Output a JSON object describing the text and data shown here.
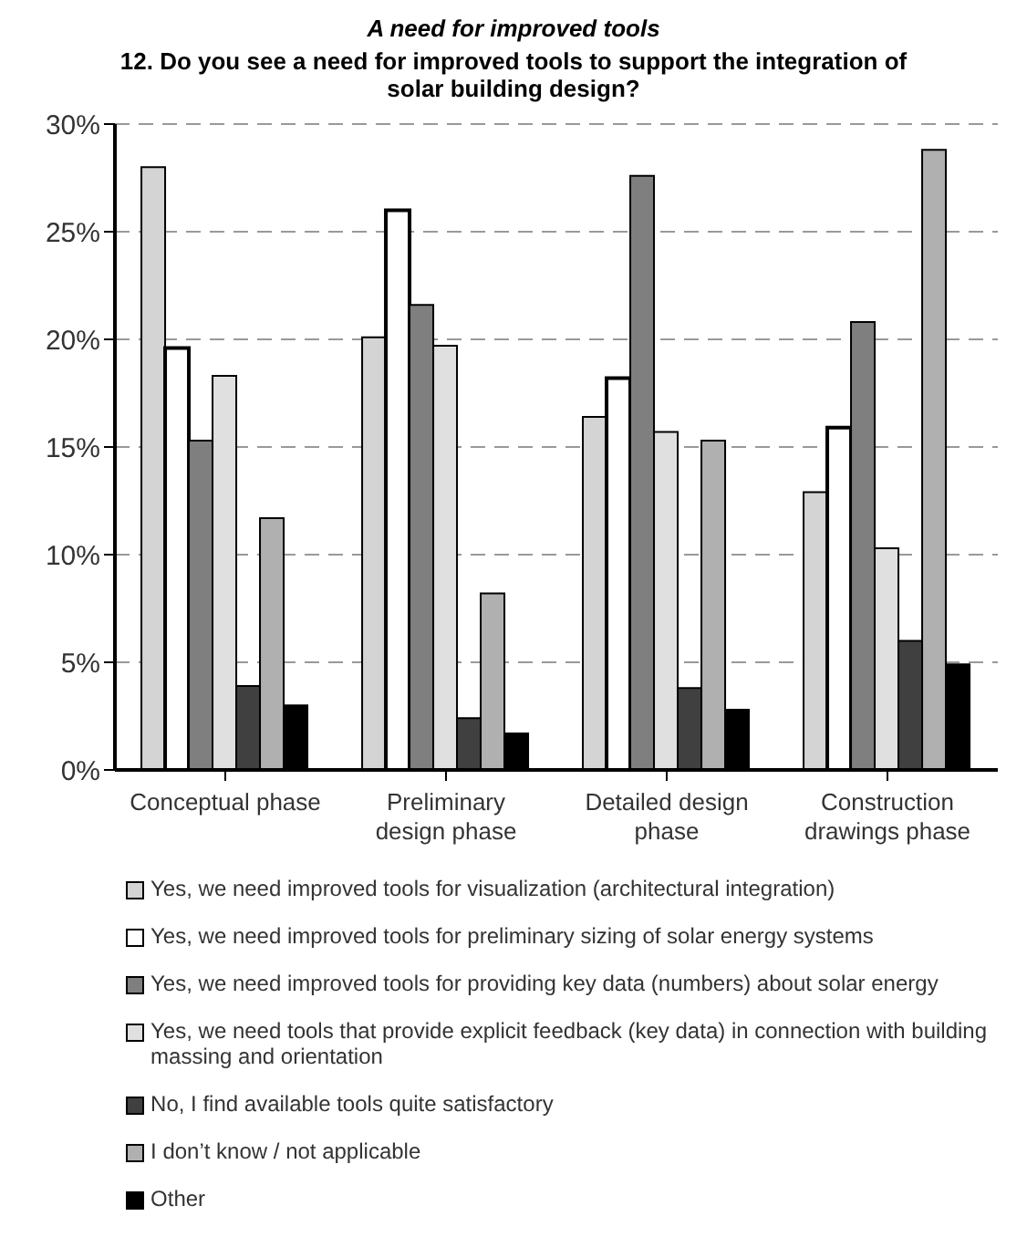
{
  "chart_data": {
    "type": "bar",
    "title": "A need for improved tools",
    "subtitle": "12. Do you see a need for improved tools to support the integration of solar building design?",
    "categories": [
      "Conceptual phase",
      "Preliminary design phase",
      "Detailed  design phase",
      "Construction drawings phase"
    ],
    "series": [
      {
        "name": "Yes, we need improved tools for visualization (architectural integration)",
        "color": "#d4d4d4",
        "values": [
          28,
          20.1,
          16.4,
          12.9
        ]
      },
      {
        "name": "Yes, we need improved tools for preliminary sizing of solar energy systems",
        "color": "#ffffff",
        "values": [
          19.6,
          26,
          18.2,
          15.9
        ]
      },
      {
        "name": "Yes, we need improved tools for providing key data (numbers) about solar energy",
        "color": "#7f7f80",
        "values": [
          15.3,
          21.6,
          27.6,
          20.8
        ]
      },
      {
        "name": "Yes, we need tools that provide explicit feedback (key data) in connection with building massing and orientation",
        "color": "#e0e0e0",
        "values": [
          18.3,
          19.7,
          15.7,
          10.3
        ]
      },
      {
        "name": "No, I find available tools quite satisfactory",
        "color": "#404040",
        "values": [
          3.9,
          2.4,
          3.8,
          6.0
        ]
      },
      {
        "name": "I don’t know / not applicable",
        "color": "#b0b0b0",
        "values": [
          11.7,
          8.2,
          15.3,
          28.8
        ]
      },
      {
        "name": "Other",
        "color": "#000000",
        "values": [
          3.0,
          1.7,
          2.8,
          4.9
        ]
      }
    ],
    "ylim": [
      0,
      30
    ],
    "yticks": [
      {
        "value": 0,
        "label": "0%"
      },
      {
        "value": 5,
        "label": "5%"
      },
      {
        "value": 10,
        "label": "10%"
      },
      {
        "value": 15,
        "label": "15%"
      },
      {
        "value": 20,
        "label": "20%"
      },
      {
        "value": 25,
        "label": "25%"
      },
      {
        "value": 30,
        "label": "30%"
      }
    ],
    "grid": "y",
    "legend": "bottom"
  }
}
